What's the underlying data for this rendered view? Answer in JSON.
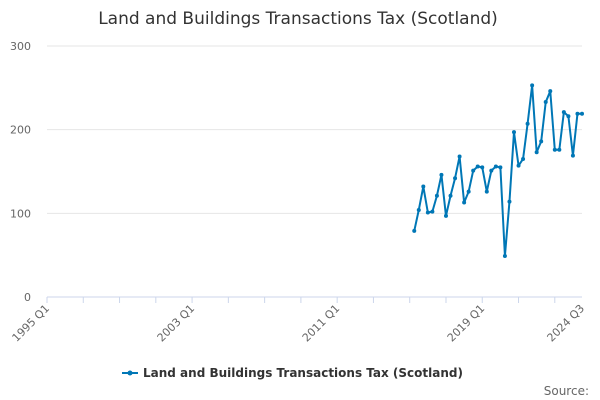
{
  "chart_data": {
    "type": "line",
    "title": "Land and Buildings Transactions Tax (Scotland)",
    "xlabel": "",
    "ylabel": "",
    "ylim": [
      0,
      300
    ],
    "yticks": [
      0,
      100,
      200,
      300
    ],
    "x_ticks": [
      "1995 Q1",
      "2003 Q1",
      "2011 Q1",
      "2019 Q1",
      "2024 Q3"
    ],
    "grid": true,
    "legend_position": "bottom-center",
    "series": [
      {
        "name": "Land and Buildings Transactions Tax (Scotland)",
        "color": "#0077b6",
        "x": [
          "2015 Q2",
          "2015 Q3",
          "2015 Q4",
          "2016 Q1",
          "2016 Q2",
          "2016 Q3",
          "2016 Q4",
          "2017 Q1",
          "2017 Q2",
          "2017 Q3",
          "2017 Q4",
          "2018 Q1",
          "2018 Q2",
          "2018 Q3",
          "2018 Q4",
          "2019 Q1",
          "2019 Q2",
          "2019 Q3",
          "2019 Q4",
          "2020 Q1",
          "2020 Q2",
          "2020 Q3",
          "2020 Q4",
          "2021 Q1",
          "2021 Q2",
          "2021 Q3",
          "2021 Q4",
          "2022 Q1",
          "2022 Q2",
          "2022 Q3",
          "2022 Q4",
          "2023 Q1",
          "2023 Q2",
          "2023 Q3",
          "2023 Q4",
          "2024 Q1",
          "2024 Q2",
          "2024 Q3"
        ],
        "values": [
          79,
          104,
          132,
          101,
          102,
          121,
          146,
          97,
          121,
          142,
          168,
          113,
          126,
          151,
          156,
          155,
          126,
          151,
          156,
          155,
          49,
          114,
          197,
          157,
          165,
          207,
          253,
          173,
          186,
          233,
          246,
          176,
          176,
          221,
          216,
          169,
          219,
          219
        ]
      }
    ]
  },
  "legend": {
    "label": "Land and Buildings Transactions Tax (Scotland)"
  },
  "credits": {
    "label": "Source:"
  }
}
